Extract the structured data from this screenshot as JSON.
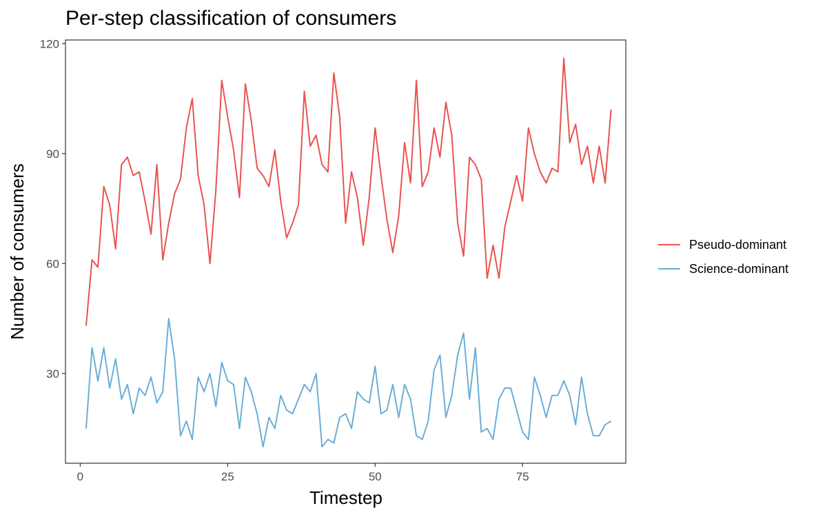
{
  "chart_data": {
    "type": "line",
    "title": "Per-step classification of consumers",
    "xlabel": "Timestep",
    "ylabel": "Number of consumers",
    "xlim": [
      -2.5,
      92.5
    ],
    "ylim": [
      5.5,
      121
    ],
    "x_ticks": [
      0,
      25,
      50,
      75
    ],
    "y_ticks": [
      30,
      60,
      90,
      120
    ],
    "grid": false,
    "legend_position": "right",
    "x": [
      1,
      2,
      3,
      4,
      5,
      6,
      7,
      8,
      9,
      10,
      11,
      12,
      13,
      14,
      15,
      16,
      17,
      18,
      19,
      20,
      21,
      22,
      23,
      24,
      25,
      26,
      27,
      28,
      29,
      30,
      31,
      32,
      33,
      34,
      35,
      36,
      37,
      38,
      39,
      40,
      41,
      42,
      43,
      44,
      45,
      46,
      47,
      48,
      49,
      50,
      51,
      52,
      53,
      54,
      55,
      56,
      57,
      58,
      59,
      60,
      61,
      62,
      63,
      64,
      65,
      66,
      67,
      68,
      69,
      70,
      71,
      72,
      73,
      74,
      75,
      76,
      77,
      78,
      79,
      80,
      81,
      82,
      83,
      84,
      85,
      86,
      87,
      88,
      89,
      90
    ],
    "series": [
      {
        "name": "Pseudo-dominant",
        "color": "#E8534F",
        "values": [
          43,
          61,
          59,
          81,
          76,
          64,
          87,
          89,
          84,
          85,
          77,
          68,
          87,
          61,
          71,
          79,
          83,
          97,
          105,
          84,
          76,
          60,
          80,
          110,
          100,
          91,
          78,
          109,
          99,
          86,
          84,
          81,
          91,
          77,
          67,
          71,
          76,
          107,
          92,
          95,
          87,
          85,
          112,
          100,
          71,
          85,
          78,
          65,
          78,
          97,
          84,
          72,
          63,
          73,
          93,
          82,
          110,
          81,
          85,
          97,
          89,
          104,
          95,
          71,
          62,
          89,
          87,
          83,
          56,
          65,
          56,
          70,
          77,
          84,
          77,
          97,
          90,
          85,
          82,
          86,
          85,
          116,
          93,
          98,
          87,
          92,
          82,
          92,
          82,
          102
        ]
      },
      {
        "name": "Science-dominant",
        "color": "#6AAED6",
        "values": [
          15,
          37,
          28,
          37,
          26,
          34,
          23,
          27,
          19,
          26,
          24,
          29,
          22,
          25,
          45,
          34,
          13,
          17,
          12,
          29,
          25,
          30,
          21,
          33,
          28,
          27,
          15,
          29,
          25,
          19,
          10,
          18,
          15,
          24,
          20,
          19,
          23,
          27,
          25,
          30,
          10,
          12,
          11,
          18,
          19,
          15,
          25,
          23,
          22,
          32,
          19,
          20,
          27,
          18,
          27,
          23,
          13,
          12,
          17,
          31,
          35,
          18,
          24,
          35,
          41,
          23,
          37,
          14,
          15,
          12,
          23,
          26,
          26,
          20,
          14,
          12,
          29,
          24,
          18,
          24,
          24,
          28,
          24,
          16,
          29,
          19,
          13,
          13,
          16,
          17
        ]
      }
    ]
  }
}
